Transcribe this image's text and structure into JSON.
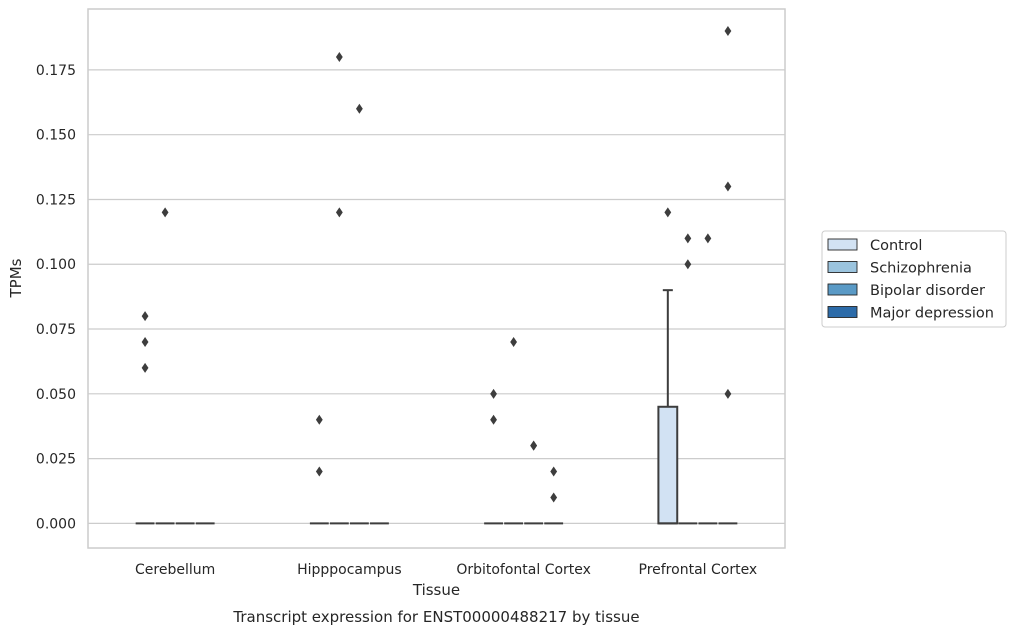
{
  "chart_data": {
    "type": "box",
    "caption": "Transcript expression for ENST00000488217 by tissue",
    "xlabel": "Tissue",
    "ylabel": "TPMs",
    "ylim": [
      -0.0095,
      0.1985
    ],
    "yticks": [
      "0.000",
      "0.025",
      "0.050",
      "0.075",
      "0.100",
      "0.125",
      "0.150",
      "0.175"
    ],
    "grid": true,
    "legend_position": "right",
    "categories": [
      "Cerebellum",
      "Hipppocampus",
      "Orbitofontal Cortex",
      "Prefrontal Cortex"
    ],
    "series": [
      {
        "name": "Control",
        "color": "#d2e2f3",
        "boxes": [
          {
            "q1": 0,
            "median": 0,
            "q3": 0,
            "whisker_low": 0,
            "whisker_high": 0,
            "outliers": [
              0.06,
              0.07,
              0.08
            ]
          },
          {
            "q1": 0,
            "median": 0,
            "q3": 0,
            "whisker_low": 0,
            "whisker_high": 0,
            "outliers": [
              0.02,
              0.04
            ]
          },
          {
            "q1": 0,
            "median": 0,
            "q3": 0,
            "whisker_low": 0,
            "whisker_high": 0,
            "outliers": [
              0.04,
              0.05
            ]
          },
          {
            "q1": 0,
            "median": 0,
            "q3": 0.045,
            "whisker_low": 0,
            "whisker_high": 0.09,
            "outliers": [
              0.12
            ]
          }
        ]
      },
      {
        "name": "Schizophrenia",
        "color": "#9bc4de",
        "boxes": [
          {
            "q1": 0,
            "median": 0,
            "q3": 0,
            "whisker_low": 0,
            "whisker_high": 0,
            "outliers": [
              0.12
            ]
          },
          {
            "q1": 0,
            "median": 0,
            "q3": 0,
            "whisker_low": 0,
            "whisker_high": 0,
            "outliers": [
              0.12,
              0.18
            ]
          },
          {
            "q1": 0,
            "median": 0,
            "q3": 0,
            "whisker_low": 0,
            "whisker_high": 0,
            "outliers": [
              0.07
            ]
          },
          {
            "q1": 0,
            "median": 0,
            "q3": 0,
            "whisker_low": 0,
            "whisker_high": 0,
            "outliers": [
              0.1,
              0.11
            ]
          }
        ]
      },
      {
        "name": "Bipolar disorder",
        "color": "#5a9ac6",
        "boxes": [
          {
            "q1": 0,
            "median": 0,
            "q3": 0,
            "whisker_low": 0,
            "whisker_high": 0,
            "outliers": []
          },
          {
            "q1": 0,
            "median": 0,
            "q3": 0,
            "whisker_low": 0,
            "whisker_high": 0,
            "outliers": [
              0.16
            ]
          },
          {
            "q1": 0,
            "median": 0,
            "q3": 0,
            "whisker_low": 0,
            "whisker_high": 0,
            "outliers": [
              0.03,
              0.03
            ]
          },
          {
            "q1": 0,
            "median": 0,
            "q3": 0,
            "whisker_low": 0,
            "whisker_high": 0,
            "outliers": [
              0.11
            ]
          }
        ]
      },
      {
        "name": "Major depression",
        "color": "#2c6ba9",
        "boxes": [
          {
            "q1": 0,
            "median": 0,
            "q3": 0,
            "whisker_low": 0,
            "whisker_high": 0,
            "outliers": []
          },
          {
            "q1": 0,
            "median": 0,
            "q3": 0,
            "whisker_low": 0,
            "whisker_high": 0,
            "outliers": []
          },
          {
            "q1": 0,
            "median": 0,
            "q3": 0,
            "whisker_low": 0,
            "whisker_high": 0,
            "outliers": [
              0.01,
              0.02
            ]
          },
          {
            "q1": 0,
            "median": 0,
            "q3": 0,
            "whisker_low": 0,
            "whisker_high": 0,
            "outliers": [
              0.05,
              0.13,
              0.19
            ]
          }
        ]
      }
    ]
  }
}
